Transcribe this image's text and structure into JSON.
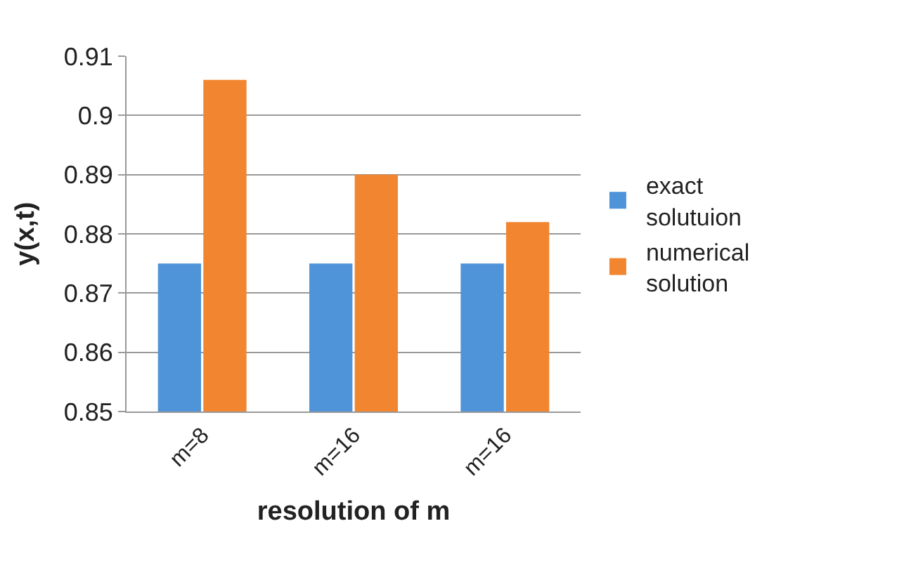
{
  "chart_data": {
    "type": "bar",
    "ylabel": "y(x,t)",
    "xlabel": "resolution of m",
    "categories": [
      "m=8",
      "m=16",
      "m=16"
    ],
    "series": [
      {
        "name": "exact solutuion",
        "color": "#4f94d9",
        "values": [
          0.875,
          0.875,
          0.875
        ]
      },
      {
        "name": "numerical solution",
        "color": "#f28530",
        "values": [
          0.906,
          0.89,
          0.882
        ]
      }
    ],
    "ylim": [
      0.85,
      0.91
    ],
    "yticks": [
      0.85,
      0.86,
      0.87,
      0.88,
      0.89,
      0.9,
      0.91
    ],
    "grid": "y",
    "legend": "right"
  }
}
